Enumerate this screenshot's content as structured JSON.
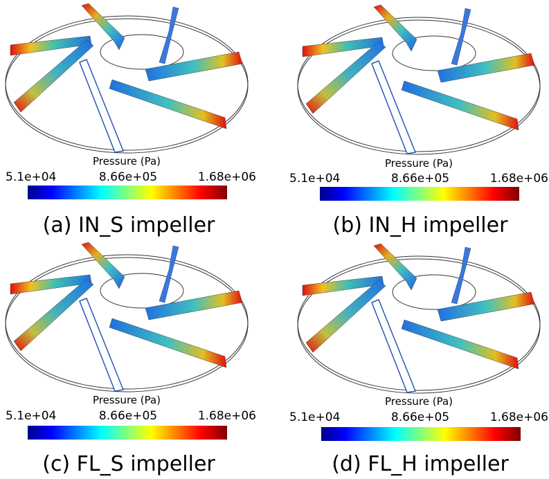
{
  "panels": [
    {
      "caption": "(a) IN_S impeller",
      "colorbar": {
        "title": "Pressure (Pa)",
        "min_label": "5.1e+04",
        "mid_label": "8.66e+05",
        "max_label": "1.68e+06"
      }
    },
    {
      "caption": "(b) IN_H impeller",
      "colorbar": {
        "title": "Pressure (Pa)",
        "min_label": "5.1e+04",
        "mid_label": "8.66e+05",
        "max_label": "1.68e+06"
      }
    },
    {
      "caption": "(c) FL_S impeller",
      "colorbar": {
        "title": "Pressure (Pa)",
        "min_label": "5.1e+04",
        "mid_label": "8.66e+05",
        "max_label": "1.68e+06"
      }
    },
    {
      "caption": "(d) FL_H impeller",
      "colorbar": {
        "title": "Pressure (Pa)",
        "min_label": "5.1e+04",
        "mid_label": "8.66e+05",
        "max_label": "1.68e+06"
      }
    }
  ]
}
